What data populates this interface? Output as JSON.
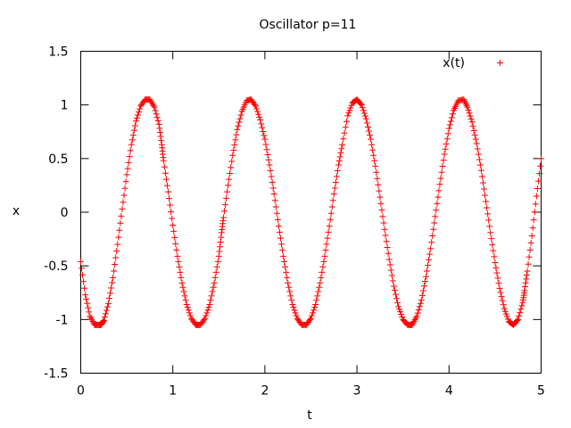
{
  "chart_data": {
    "type": "scatter",
    "title": "Oscillator p=11",
    "xlabel": "t",
    "ylabel": "x",
    "xlim": [
      0,
      5
    ],
    "ylim": [
      -1.5,
      1.5
    ],
    "xticks": [
      "0",
      "1",
      "2",
      "3",
      "4",
      "5"
    ],
    "yticks": [
      "-1.5",
      "-1",
      "-0.5",
      "0",
      "0.5",
      "1",
      "1.5"
    ],
    "grid": false,
    "legend_position": "top-right",
    "marker": "+",
    "series": [
      {
        "name": "x(t)",
        "color": "#ff0000",
        "x": [
          0,
          0.05,
          0.1,
          0.15,
          0.2,
          0.22,
          0.25,
          0.3,
          0.35,
          0.4,
          0.45,
          0.5,
          0.55,
          0.6,
          0.65,
          0.7,
          0.75,
          0.8,
          0.85,
          0.88,
          0.9,
          0.95,
          1.0,
          1.05,
          1.1,
          1.15,
          1.2,
          1.25,
          1.3,
          1.35,
          1.4,
          1.45,
          1.5,
          1.53,
          1.55,
          1.6,
          1.65,
          1.7,
          1.75,
          1.8,
          1.85,
          1.9,
          1.95,
          2.0,
          2.05,
          2.1,
          2.15,
          2.2,
          2.25,
          2.3,
          2.35,
          2.4,
          2.45,
          2.5,
          2.55,
          2.6,
          2.65,
          2.7,
          2.75,
          2.8,
          2.84,
          2.9,
          2.95,
          3.0,
          3.05,
          3.1,
          3.15,
          3.2,
          3.25,
          3.3,
          3.35,
          3.4,
          3.45,
          3.5,
          3.55,
          3.6,
          3.65,
          3.7,
          3.75,
          3.8,
          3.85,
          3.9,
          3.95,
          4.0,
          4.05,
          4.1,
          4.16,
          4.2,
          4.25,
          4.3,
          4.35,
          4.4,
          4.45,
          4.5,
          4.55,
          4.6,
          4.65,
          4.7,
          4.75,
          4.8,
          4.82,
          4.85,
          4.9,
          4.95,
          5.0
        ],
        "y": [
          -0.46,
          -0.77,
          -0.97,
          -1.05,
          -1.05,
          -1.05,
          -1.01,
          -0.85,
          -0.61,
          -0.3,
          0.03,
          0.35,
          0.63,
          0.85,
          0.99,
          1.05,
          1.05,
          0.98,
          0.82,
          0.63,
          0.48,
          0.19,
          -0.12,
          -0.41,
          -0.66,
          -0.86,
          -0.99,
          -1.05,
          -1.05,
          -0.99,
          -0.86,
          -0.66,
          -0.41,
          -0.19,
          -0.05,
          0.25,
          0.53,
          0.77,
          0.94,
          1.04,
          1.05,
          0.99,
          0.86,
          0.68,
          0.44,
          0.17,
          -0.13,
          -0.41,
          -0.66,
          -0.86,
          -0.99,
          -1.05,
          -1.05,
          -0.99,
          -0.86,
          -0.66,
          -0.41,
          -0.13,
          0.17,
          0.44,
          0.63,
          0.9,
          1.02,
          1.05,
          1.0,
          0.87,
          0.68,
          0.43,
          0.14,
          -0.16,
          -0.44,
          -0.69,
          -0.88,
          -1.0,
          -1.05,
          -1.05,
          -0.97,
          -0.82,
          -0.6,
          -0.34,
          -0.04,
          0.26,
          0.54,
          0.78,
          0.95,
          1.04,
          1.05,
          0.98,
          0.84,
          0.64,
          0.39,
          0.1,
          -0.19,
          -0.47,
          -0.71,
          -0.9,
          -1.02,
          -1.05,
          -1.0,
          -0.84,
          -0.73,
          -0.55,
          -0.22,
          0.15,
          0.5
        ]
      }
    ]
  }
}
